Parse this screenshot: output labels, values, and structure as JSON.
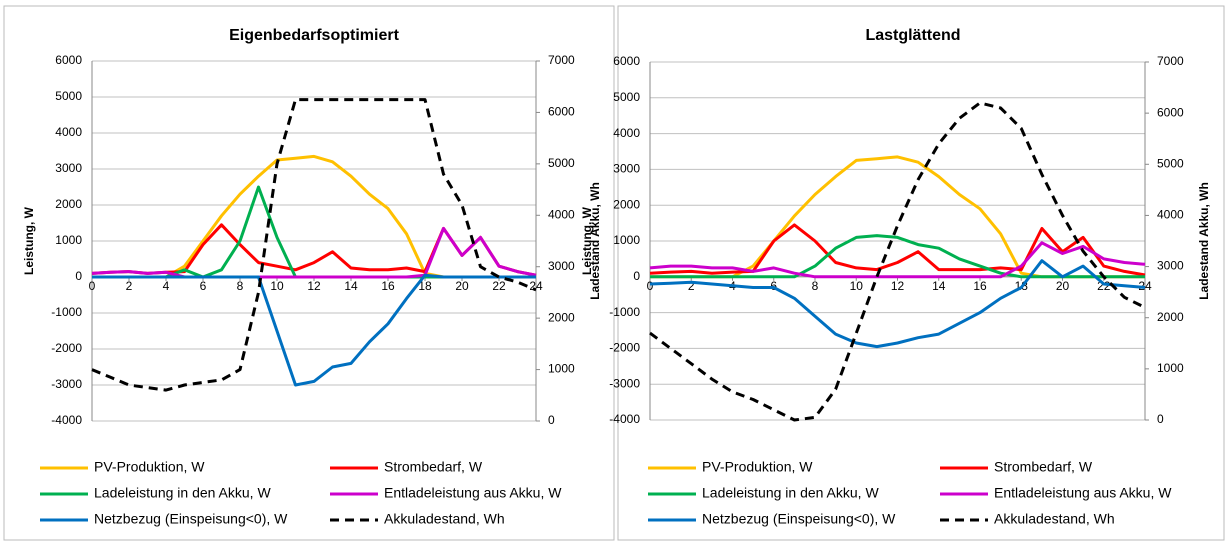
{
  "chart_data": [
    {
      "type": "line",
      "title": "Eigenbedarfsoptimiert",
      "y_label": "Leistung, W",
      "y2_label": "Ladestand Akku, Wh",
      "x": [
        0,
        1,
        2,
        3,
        4,
        5,
        6,
        7,
        8,
        9,
        10,
        11,
        12,
        13,
        14,
        15,
        16,
        17,
        18,
        19,
        20,
        21,
        22,
        23,
        24
      ],
      "xlim": [
        0,
        24
      ],
      "xticks": [
        0,
        2,
        4,
        6,
        8,
        10,
        12,
        14,
        16,
        18,
        20,
        22,
        24
      ],
      "ylim": [
        -4000,
        6000
      ],
      "yticks": [
        -4000,
        -3000,
        -2000,
        -1000,
        0,
        1000,
        2000,
        3000,
        4000,
        5000,
        6000
      ],
      "y2lim": [
        0,
        7000
      ],
      "y2ticks": [
        0,
        1000,
        2000,
        3000,
        4000,
        5000,
        6000,
        7000
      ],
      "grid": true,
      "series": [
        {
          "name": "PV-Produktion, W",
          "color": "#ffc000",
          "values": [
            0,
            0,
            0,
            0,
            0,
            300,
            1000,
            1700,
            2300,
            2800,
            3250,
            3300,
            3350,
            3200,
            2800,
            2300,
            1900,
            1200,
            100,
            0,
            0,
            0,
            0,
            0,
            0
          ]
        },
        {
          "name": "Strombedarf, W",
          "color": "#ff0000",
          "values": [
            100,
            130,
            150,
            100,
            130,
            150,
            900,
            1450,
            900,
            400,
            300,
            200,
            400,
            700,
            250,
            200,
            200,
            250,
            150,
            1350,
            600,
            1100,
            300,
            150,
            50
          ]
        },
        {
          "name": "Ladeleistung in den Akku, W",
          "color": "#00b050",
          "values": [
            0,
            0,
            0,
            0,
            0,
            200,
            0,
            200,
            1000,
            2500,
            1100,
            0,
            0,
            0,
            0,
            0,
            0,
            0,
            0,
            0,
            0,
            0,
            0,
            0,
            0
          ]
        },
        {
          "name": "Entladeleistung aus Akku, W",
          "color": "#cc00cc",
          "values": [
            100,
            130,
            150,
            100,
            130,
            0,
            0,
            0,
            0,
            0,
            0,
            0,
            0,
            0,
            0,
            0,
            0,
            0,
            50,
            1350,
            600,
            1100,
            300,
            150,
            50
          ]
        },
        {
          "name": "Netzbezug (Einspeisung<0), W",
          "color": "#0070c0",
          "values": [
            0,
            0,
            0,
            0,
            0,
            0,
            0,
            0,
            0,
            0,
            -1500,
            -3000,
            -2900,
            -2500,
            -2400,
            -1800,
            -1300,
            -600,
            50,
            0,
            0,
            0,
            0,
            0,
            0
          ]
        },
        {
          "name": "Akkuladestand, Wh",
          "color": "#000000",
          "dashed": true,
          "axis": "y2",
          "values": [
            1000,
            850,
            700,
            650,
            600,
            700,
            750,
            800,
            1000,
            2500,
            5000,
            6250,
            6250,
            6250,
            6250,
            6250,
            6250,
            6250,
            6250,
            4800,
            4200,
            3000,
            2800,
            2700,
            2550
          ]
        }
      ]
    },
    {
      "type": "line",
      "title": "Lastglättend",
      "y_label": "Leistung, W",
      "y2_label": "Ladestand Akku, Wh",
      "x": [
        0,
        1,
        2,
        3,
        4,
        5,
        6,
        7,
        8,
        9,
        10,
        11,
        12,
        13,
        14,
        15,
        16,
        17,
        18,
        19,
        20,
        21,
        22,
        23,
        24
      ],
      "xlim": [
        0,
        24
      ],
      "xticks": [
        0,
        2,
        4,
        6,
        8,
        10,
        12,
        14,
        16,
        18,
        20,
        22,
        24
      ],
      "ylim": [
        -4000,
        6000
      ],
      "yticks": [
        -4000,
        -3000,
        -2000,
        -1000,
        0,
        1000,
        2000,
        3000,
        4000,
        5000,
        6000
      ],
      "y2lim": [
        0,
        7000
      ],
      "y2ticks": [
        0,
        1000,
        2000,
        3000,
        4000,
        5000,
        6000,
        7000
      ],
      "grid": true,
      "series": [
        {
          "name": "PV-Produktion, W",
          "color": "#ffc000",
          "values": [
            0,
            0,
            0,
            0,
            0,
            300,
            1000,
            1700,
            2300,
            2800,
            3250,
            3300,
            3350,
            3200,
            2800,
            2300,
            1900,
            1200,
            100,
            0,
            0,
            0,
            0,
            0,
            0
          ]
        },
        {
          "name": "Strombedarf, W",
          "color": "#ff0000",
          "values": [
            100,
            130,
            150,
            100,
            130,
            150,
            1000,
            1450,
            1000,
            400,
            250,
            200,
            400,
            700,
            200,
            200,
            200,
            250,
            200,
            1350,
            700,
            1100,
            300,
            150,
            50
          ]
        },
        {
          "name": "Ladeleistung in den Akku, W",
          "color": "#00b050",
          "values": [
            0,
            0,
            0,
            0,
            0,
            0,
            0,
            0,
            300,
            800,
            1100,
            1150,
            1100,
            900,
            800,
            500,
            300,
            100,
            0,
            0,
            0,
            0,
            0,
            0,
            0
          ]
        },
        {
          "name": "Entladeleistung aus Akku, W",
          "color": "#cc00cc",
          "values": [
            250,
            300,
            300,
            250,
            250,
            150,
            250,
            100,
            0,
            0,
            0,
            0,
            0,
            0,
            0,
            0,
            0,
            0,
            300,
            950,
            650,
            850,
            500,
            400,
            350
          ]
        },
        {
          "name": "Netzbezug (Einspeisung<0), W",
          "color": "#0070c0",
          "values": [
            -200,
            -180,
            -150,
            -200,
            -250,
            -300,
            -300,
            -600,
            -1100,
            -1600,
            -1850,
            -1950,
            -1850,
            -1700,
            -1600,
            -1300,
            -1000,
            -600,
            -300,
            450,
            0,
            300,
            -200,
            -250,
            -300
          ]
        },
        {
          "name": "Akkuladestand, Wh",
          "color": "#000000",
          "dashed": true,
          "axis": "y2",
          "values": [
            1700,
            1400,
            1100,
            800,
            550,
            400,
            200,
            0,
            50,
            600,
            1700,
            2800,
            3800,
            4700,
            5400,
            5900,
            6200,
            6100,
            5700,
            4800,
            4000,
            3300,
            2800,
            2400,
            2200
          ]
        }
      ]
    }
  ]
}
